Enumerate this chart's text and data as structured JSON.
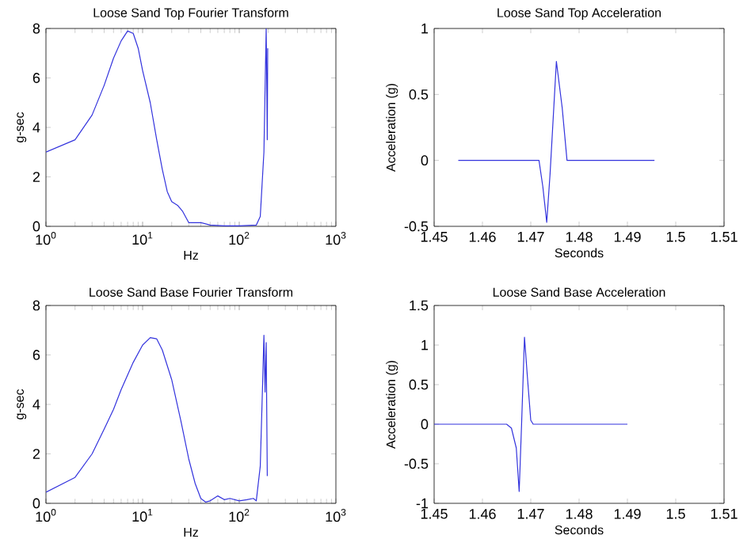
{
  "chart_data": [
    {
      "type": "line",
      "title": "Loose Sand Top Fourier Transform",
      "xlabel": "Hz",
      "ylabel": "g-sec",
      "log": "x",
      "color": "#3333dd",
      "x": [
        1,
        2,
        3,
        4,
        5,
        6,
        7,
        8,
        9,
        10,
        12,
        14,
        16,
        18,
        20,
        23,
        26,
        30,
        35,
        40,
        50,
        70,
        100,
        150,
        165,
        180,
        190,
        195,
        197
      ],
      "values": [
        3,
        3.5,
        4.5,
        5.7,
        6.8,
        7.5,
        7.9,
        7.8,
        7.2,
        6.3,
        5,
        3.5,
        2.3,
        1.4,
        1.0,
        0.85,
        0.6,
        0.15,
        0.15,
        0.15,
        0.05,
        0.02,
        0.02,
        0.05,
        0.4,
        3,
        8,
        3.5,
        7.2
      ],
      "xlim": [
        1,
        1000
      ],
      "ylim": [
        0,
        8
      ],
      "xticks": [
        {
          "value": 1,
          "label": "10$^{0}$"
        },
        {
          "value": 10,
          "label": "10$^{1}$"
        },
        {
          "value": 100,
          "label": "10$^{2}$"
        },
        {
          "value": 1000,
          "label": "10$^{3}$"
        }
      ],
      "yticks": [
        0,
        2,
        4,
        6,
        8
      ]
    },
    {
      "type": "line",
      "title": "Loose Sand Top Acceleration",
      "xlabel": "Seconds",
      "ylabel": "Acceleration (g)",
      "color": "#3333dd",
      "x": [
        1.455,
        1.4717,
        1.4725,
        1.4733,
        1.474,
        1.4753,
        1.4765,
        1.4775,
        1.4956
      ],
      "values": [
        0,
        0,
        -0.2,
        -0.47,
        -0.1,
        0.75,
        0.4,
        0,
        0
      ],
      "xlim": [
        1.45,
        1.51
      ],
      "ylim": [
        -0.5,
        1
      ],
      "xticks": [
        1.45,
        1.46,
        1.47,
        1.48,
        1.49,
        1.5,
        1.51
      ],
      "yticks": [
        -0.5,
        0,
        0.5,
        1
      ]
    },
    {
      "type": "line",
      "title": "Loose Sand Base Fourier Transform",
      "xlabel": "Hz",
      "ylabel": "g-sec",
      "log": "x",
      "color": "#3333dd",
      "x": [
        1,
        2,
        3,
        4,
        5,
        6,
        8,
        10,
        12,
        14,
        16,
        20,
        25,
        30,
        35,
        40,
        45,
        50,
        60,
        70,
        80,
        100,
        120,
        140,
        150,
        165,
        175,
        180,
        185,
        190,
        195
      ],
      "values": [
        0.45,
        1.05,
        2.0,
        3.0,
        3.8,
        4.6,
        5.7,
        6.4,
        6.7,
        6.65,
        6.2,
        5.0,
        3.3,
        1.8,
        0.8,
        0.2,
        0.05,
        0.1,
        0.3,
        0.15,
        0.2,
        0.1,
        0.15,
        0.2,
        0.1,
        1.5,
        5,
        6.8,
        4.5,
        6.5,
        1.1
      ],
      "xlim": [
        1,
        1000
      ],
      "ylim": [
        0,
        8
      ],
      "xticks": [
        {
          "value": 1,
          "label": "10$^{0}$"
        },
        {
          "value": 10,
          "label": "10$^{1}$"
        },
        {
          "value": 100,
          "label": "10$^{2}$"
        },
        {
          "value": 1000,
          "label": "10$^{3}$"
        }
      ],
      "yticks": [
        0,
        2,
        4,
        6,
        8
      ]
    },
    {
      "type": "line",
      "title": "Loose Sand Base Acceleration",
      "xlabel": "Seconds",
      "ylabel": "Acceleration (g)",
      "color": "#3333dd",
      "x": [
        1.45,
        1.465,
        1.466,
        1.467,
        1.4676,
        1.4681,
        1.4687,
        1.4693,
        1.47,
        1.4705,
        1.49
      ],
      "values": [
        0,
        0,
        -0.05,
        -0.3,
        -0.85,
        0,
        1.1,
        0.6,
        0.05,
        0,
        0
      ],
      "xlim": [
        1.45,
        1.51
      ],
      "ylim": [
        -1,
        1.5
      ],
      "xticks": [
        1.45,
        1.46,
        1.47,
        1.48,
        1.49,
        1.5,
        1.51
      ],
      "yticks": [
        -1,
        -0.5,
        0,
        0.5,
        1,
        1.5
      ]
    }
  ]
}
